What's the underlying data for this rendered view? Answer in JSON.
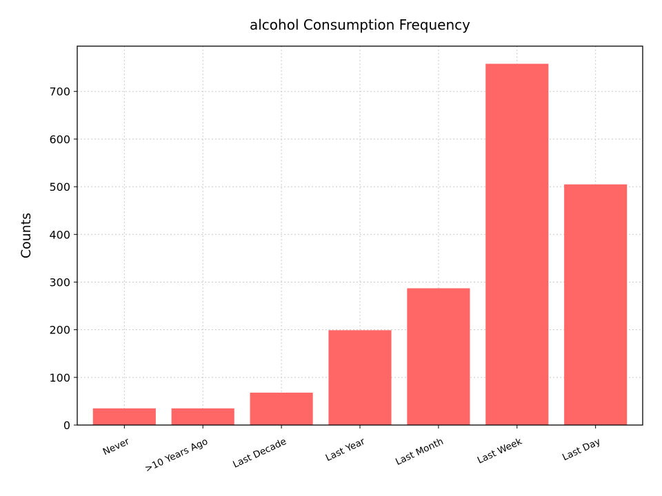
{
  "chart_data": {
    "type": "bar",
    "title": "alcohol Consumption Frequency",
    "xlabel": "",
    "ylabel": "Counts",
    "categories": [
      "Never",
      ">10 Years Ago",
      "Last Decade",
      "Last Year",
      "Last Month",
      "Last Week",
      "Last Day"
    ],
    "values": [
      35,
      35,
      68,
      199,
      287,
      758,
      505
    ],
    "ylim": [
      0,
      795
    ],
    "yticks": [
      0,
      100,
      200,
      300,
      400,
      500,
      600,
      700
    ],
    "grid": true,
    "bar_color": "#ff6666",
    "x_tick_rotation_deg": 25
  }
}
